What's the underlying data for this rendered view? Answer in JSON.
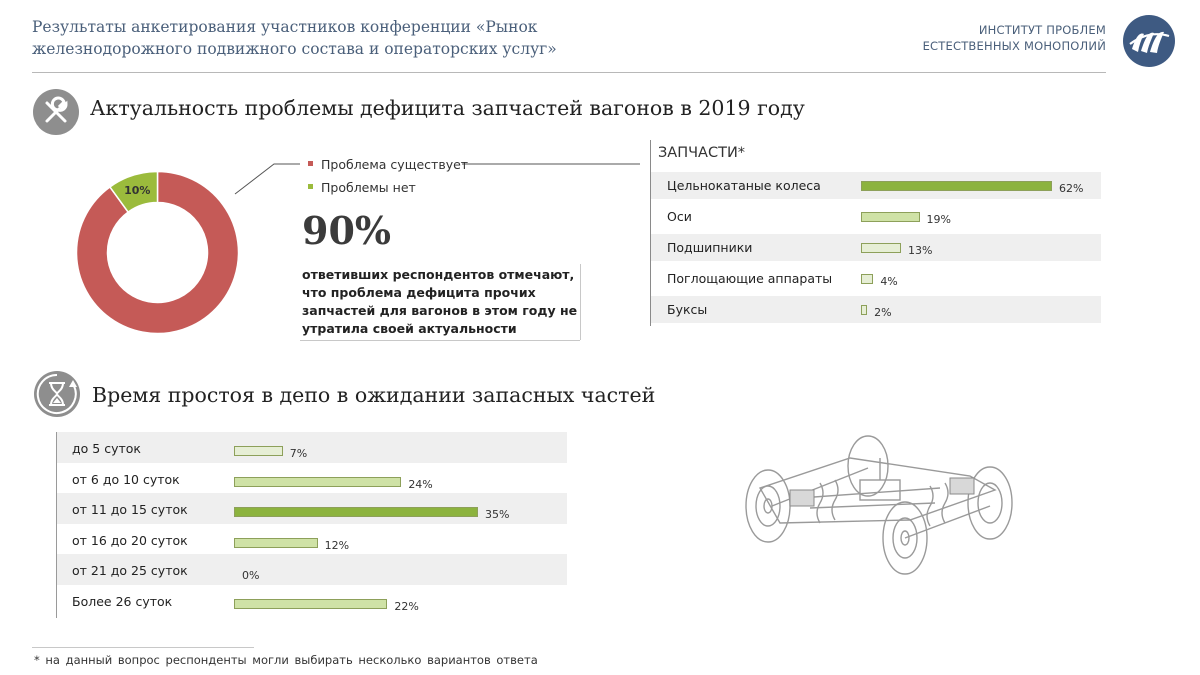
{
  "header": {
    "title_line1": "Результаты анкетирования участников конференции «Рынок",
    "title_line2": "железнодорожного подвижного состава и операторских услуг»",
    "org_line1": "ИНСТИТУТ ПРОБЛЕМ",
    "org_line2": "ЕСТЕСТВЕННЫХ МОНОПОЛИЙ",
    "logo_icon": "ipem-logo"
  },
  "section1": {
    "title": "Актуальность проблемы дефицита запчастей вагонов в 2019 году",
    "icon": "wrench-screwdriver-icon",
    "big_value": "90%",
    "description": "ответивших респондентов отмечают, что проблема дефицита прочих запчастей для вагонов в этом году не утратила своей актуальности"
  },
  "section2": {
    "title": "Время простоя в депо в ожидании запасных частей",
    "icon": "hourglass-icon"
  },
  "footnote": "*  на данный вопрос респонденты могли выбирать несколько вариантов ответа",
  "colors": {
    "red": "#c55a57",
    "green_dark": "#8cb33e",
    "green_mid": "#cfe2a6",
    "green_light": "#e6eed5",
    "header_text": "#4a5f7a"
  },
  "chart_data": [
    {
      "type": "pie",
      "variant": "donut",
      "slices": [
        {
          "name": "Проблема существует",
          "value": 90,
          "color": "#c55a57"
        },
        {
          "name": "Проблемы нет",
          "value": 10,
          "color": "#9bbb3c",
          "label": "10%"
        }
      ],
      "legend": "right"
    },
    {
      "type": "bar",
      "orientation": "horizontal",
      "title": "ЗАПЧАСТИ*",
      "categories": [
        "Цельнокатаные колеса",
        "Оси",
        "Подшипники",
        "Поглощающие аппараты",
        "Буксы"
      ],
      "values": [
        62,
        19,
        13,
        4,
        2
      ],
      "labels": [
        "62%",
        "19%",
        "13%",
        "4%",
        "2%"
      ],
      "xlim": [
        0,
        62
      ]
    },
    {
      "type": "bar",
      "orientation": "horizontal",
      "categories": [
        "до 5 суток",
        "от 6 до 10 суток",
        "от 11 до 15 суток",
        "от 16 до 20 суток",
        "от 21 до 25 суток",
        "Более 26 суток"
      ],
      "values": [
        7,
        24,
        35,
        12,
        0,
        22
      ],
      "labels": [
        "7%",
        "24%",
        "35%",
        "12%",
        "0%",
        "22%"
      ],
      "xlim": [
        0,
        35
      ]
    }
  ]
}
